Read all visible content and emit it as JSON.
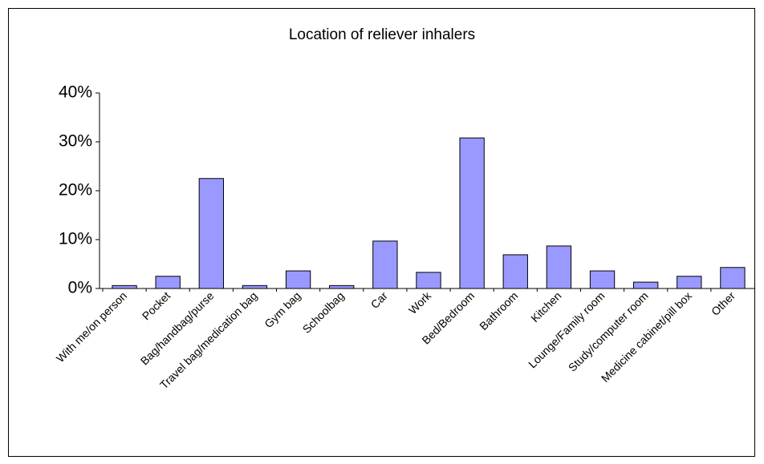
{
  "chart_data": {
    "type": "bar",
    "title": "Location of reliever inhalers",
    "categories": [
      "With me/on person",
      "Pocket",
      "Bag/handbag/purse",
      "Travel bag/medication bag",
      "Gym bag",
      "Schoolbag",
      "Car",
      "Work",
      "Bed/Bedroom",
      "Bathroom",
      "Kitchen",
      "Lounge/Family room",
      "Study/computer room",
      "Medicine cabinet/pill box",
      "Other"
    ],
    "values": [
      0.6,
      2.5,
      22.5,
      0.6,
      3.6,
      0.6,
      9.7,
      3.3,
      30.8,
      6.9,
      8.7,
      3.6,
      1.3,
      2.5,
      4.3
    ],
    "color": "#9999ff",
    "ylim": [
      0,
      40
    ],
    "yticks": [
      {
        "value": 0,
        "label": "0%"
      },
      {
        "value": 10,
        "label": "10%"
      },
      {
        "value": 20,
        "label": "20%"
      },
      {
        "value": 30,
        "label": "30%"
      },
      {
        "value": 40,
        "label": "40%"
      }
    ],
    "grid": false
  }
}
